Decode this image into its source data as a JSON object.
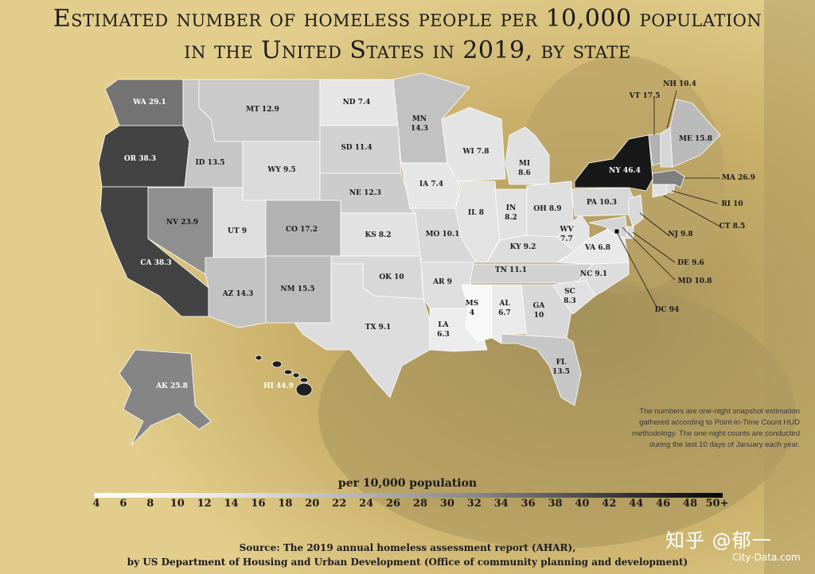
{
  "title": {
    "line1": "Estimated number of homeless people per 10,000 population",
    "line2": "in the United States in 2019, by state"
  },
  "legend": {
    "title": "per 10,000 population",
    "ticks": [
      "4",
      "6",
      "8",
      "10",
      "12",
      "14",
      "16",
      "18",
      "20",
      "22",
      "24",
      "26",
      "28",
      "30",
      "32",
      "34",
      "36",
      "38",
      "40",
      "42",
      "44",
      "46",
      "48",
      "50+"
    ],
    "min": 4,
    "max": 50
  },
  "note": {
    "line1": "The numbers are one-night snapshot estimation",
    "line2": "gathered according to Point-in-Time Count HUD",
    "line3": "methodology. The one-night counts are conducted",
    "line4": "during the last 10 days of January each year."
  },
  "source": {
    "line1": "Source: The 2019 annual homeless assessment report (AHAR),",
    "line2": "by US Department of Housing and Urban Development (Office of community planning and development)"
  },
  "watermark": {
    "main": "知乎 @郁一",
    "secondary": "City-Data.com"
  },
  "states": [
    {
      "code": "WA",
      "value": 29.1,
      "label": "WA 29.1"
    },
    {
      "code": "OR",
      "value": 38.3,
      "label": "OR 38.3"
    },
    {
      "code": "CA",
      "value": 38.3,
      "label": "CA 38.3"
    },
    {
      "code": "ID",
      "value": 13.5,
      "label": "ID 13.5"
    },
    {
      "code": "NV",
      "value": 23.9,
      "label": "NV 23.9"
    },
    {
      "code": "MT",
      "value": 12.9,
      "label": "MT 12.9"
    },
    {
      "code": "WY",
      "value": 9.5,
      "label": "WY 9.5"
    },
    {
      "code": "UT",
      "value": 9,
      "label": "UT 9"
    },
    {
      "code": "CO",
      "value": 17.2,
      "label": "CO 17.2"
    },
    {
      "code": "AZ",
      "value": 14.3,
      "label": "AZ 14.3"
    },
    {
      "code": "NM",
      "value": 15.5,
      "label": "NM 15.5"
    },
    {
      "code": "ND",
      "value": 7.4,
      "label": "ND 7.4"
    },
    {
      "code": "SD",
      "value": 11.4,
      "label": "SD 11.4"
    },
    {
      "code": "NE",
      "value": 12.3,
      "label": "NE 12.3"
    },
    {
      "code": "KS",
      "value": 8.2,
      "label": "KS 8.2"
    },
    {
      "code": "OK",
      "value": 10,
      "label": "OK 10"
    },
    {
      "code": "TX",
      "value": 9.1,
      "label": "TX 9.1"
    },
    {
      "code": "MN",
      "value": 14.3,
      "label": "MN 14.3"
    },
    {
      "code": "IA",
      "value": 7.4,
      "label": "IA 7.4"
    },
    {
      "code": "MO",
      "value": 10.1,
      "label": "MO 10.1"
    },
    {
      "code": "AR",
      "value": 9,
      "label": "AR 9"
    },
    {
      "code": "LA",
      "value": 6.3,
      "label": "LA 6.3"
    },
    {
      "code": "WI",
      "value": 7.8,
      "label": "WI 7.8"
    },
    {
      "code": "IL",
      "value": 8,
      "label": "IL 8"
    },
    {
      "code": "MI",
      "value": 8.6,
      "label": "MI 8.6"
    },
    {
      "code": "IN",
      "value": 8.2,
      "label": "IN 8.2"
    },
    {
      "code": "OH",
      "value": 8.9,
      "label": "OH 8.9"
    },
    {
      "code": "KY",
      "value": 9.2,
      "label": "KY 9.2"
    },
    {
      "code": "TN",
      "value": 11.1,
      "label": "TN 11.1"
    },
    {
      "code": "MS",
      "value": 4,
      "label": "MS 4"
    },
    {
      "code": "AL",
      "value": 6.7,
      "label": "AL 6.7"
    },
    {
      "code": "GA",
      "value": 10,
      "label": "GA 10"
    },
    {
      "code": "FL",
      "value": 13.5,
      "label": "FL 13.5"
    },
    {
      "code": "SC",
      "value": 8.3,
      "label": "SC 8.3"
    },
    {
      "code": "NC",
      "value": 9.1,
      "label": "NC 9.1"
    },
    {
      "code": "VA",
      "value": 6.8,
      "label": "VA 6.8"
    },
    {
      "code": "WV",
      "value": 7.7,
      "label": "WV 7.7"
    },
    {
      "code": "PA",
      "value": 10.3,
      "label": "PA 10.3"
    },
    {
      "code": "NY",
      "value": 46.4,
      "label": "NY 46.4"
    },
    {
      "code": "VT",
      "value": 17.5,
      "label": "VT 17.5"
    },
    {
      "code": "NH",
      "value": 10.4,
      "label": "NH 10.4"
    },
    {
      "code": "ME",
      "value": 15.8,
      "label": "ME 15.8"
    },
    {
      "code": "MA",
      "value": 26.9,
      "label": "MA 26.9"
    },
    {
      "code": "RI",
      "value": 10,
      "label": "RI 10"
    },
    {
      "code": "CT",
      "value": 8.5,
      "label": "CT 8.5"
    },
    {
      "code": "NJ",
      "value": 9.8,
      "label": "NJ 9.8"
    },
    {
      "code": "DE",
      "value": 9.6,
      "label": "DE 9.6"
    },
    {
      "code": "MD",
      "value": 10.8,
      "label": "MD 10.8"
    },
    {
      "code": "DC",
      "value": 94,
      "label": "DC 94"
    },
    {
      "code": "AK",
      "value": 25.8,
      "label": "AK 25.8"
    },
    {
      "code": "HI",
      "value": 44.9,
      "label": "HI 44.9"
    }
  ]
}
